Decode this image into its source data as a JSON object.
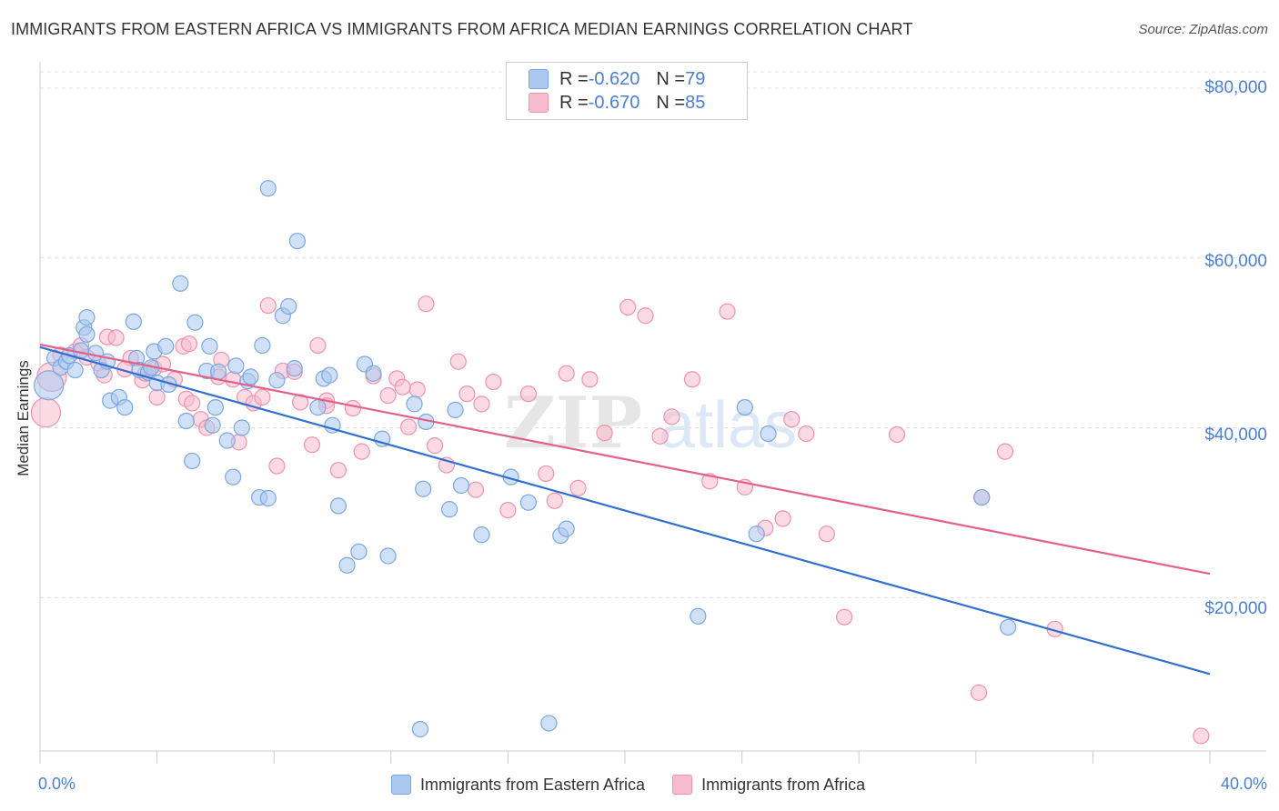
{
  "header": {
    "title": "IMMIGRANTS FROM EASTERN AFRICA VS IMMIGRANTS FROM AFRICA MEDIAN EARNINGS CORRELATION CHART",
    "source": "Source: ZipAtlas.com"
  },
  "watermark": {
    "zip": "ZIP",
    "atlas": "atlas"
  },
  "legend_top": {
    "rows": [
      {
        "r_label": "R = ",
        "r_value": "-0.620",
        "n_label": "N = ",
        "n_value": "79"
      },
      {
        "r_label": "R = ",
        "r_value": "-0.670",
        "n_label": "N = ",
        "n_value": "85"
      }
    ]
  },
  "colors": {
    "blue_fill": "#aac8f0",
    "blue_stroke": "#7ba7e0",
    "blue_line": "#2f6fd0",
    "pink_fill": "#f7bccd",
    "pink_stroke": "#ef92ad",
    "pink_line": "#e2618b",
    "tick_text": "#4a7fd4",
    "grid": "#dddddd"
  },
  "chart_data": {
    "type": "scatter",
    "xlabel": "",
    "ylabel": "Median Earnings",
    "xlim": [
      0,
      40
    ],
    "ylim": [
      0,
      82000
    ],
    "x_tick_labels": [
      "0.0%",
      "40.0%"
    ],
    "y_ticks": [
      20000,
      40000,
      60000,
      80000
    ],
    "y_tick_labels": [
      "$20,000",
      "$40,000",
      "$60,000",
      "$80,000"
    ],
    "grid": true,
    "legend_position": "top-center",
    "series": [
      {
        "name": "Immigrants from Eastern Africa",
        "color": "#aac8f0",
        "trend": {
          "x": [
            0,
            40
          ],
          "y": [
            49500,
            11000
          ]
        },
        "points": [
          [
            0.3,
            45000
          ],
          [
            0.5,
            48200
          ],
          [
            0.7,
            47100
          ],
          [
            0.9,
            47800
          ],
          [
            1.0,
            48500
          ],
          [
            1.2,
            46800
          ],
          [
            1.5,
            51800
          ],
          [
            1.6,
            51000
          ],
          [
            1.6,
            53000
          ],
          [
            1.9,
            48800
          ],
          [
            2.1,
            46800
          ],
          [
            2.3,
            47800
          ],
          [
            2.4,
            43200
          ],
          [
            2.7,
            43600
          ],
          [
            2.9,
            42400
          ],
          [
            3.2,
            52500
          ],
          [
            3.3,
            48200
          ],
          [
            3.4,
            46800
          ],
          [
            3.7,
            46500
          ],
          [
            3.9,
            49000
          ],
          [
            4.0,
            45300
          ],
          [
            4.3,
            49600
          ],
          [
            4.4,
            45100
          ],
          [
            4.8,
            57000
          ],
          [
            5.0,
            40800
          ],
          [
            5.2,
            36100
          ],
          [
            5.3,
            52400
          ],
          [
            5.7,
            46700
          ],
          [
            5.8,
            49600
          ],
          [
            5.9,
            40300
          ],
          [
            6.0,
            42400
          ],
          [
            6.4,
            38500
          ],
          [
            6.6,
            34200
          ],
          [
            6.7,
            47300
          ],
          [
            6.9,
            40000
          ],
          [
            7.1,
            45500
          ],
          [
            7.2,
            46000
          ],
          [
            7.5,
            31800
          ],
          [
            7.6,
            49700
          ],
          [
            7.8,
            31700
          ],
          [
            7.8,
            68200
          ],
          [
            8.1,
            45600
          ],
          [
            8.3,
            53200
          ],
          [
            8.5,
            54300
          ],
          [
            8.7,
            47000
          ],
          [
            8.8,
            62000
          ],
          [
            9.5,
            42400
          ],
          [
            9.7,
            45800
          ],
          [
            10.0,
            40300
          ],
          [
            10.2,
            30800
          ],
          [
            10.5,
            23800
          ],
          [
            10.9,
            25400
          ],
          [
            11.1,
            47500
          ],
          [
            11.4,
            46400
          ],
          [
            11.9,
            24900
          ],
          [
            12.8,
            42800
          ],
          [
            13.0,
            4500
          ],
          [
            13.1,
            32800
          ],
          [
            13.2,
            40700
          ],
          [
            14.0,
            30400
          ],
          [
            14.2,
            42100
          ],
          [
            14.4,
            33200
          ],
          [
            15.1,
            27400
          ],
          [
            16.1,
            34200
          ],
          [
            16.7,
            31200
          ],
          [
            17.4,
            5200
          ],
          [
            17.8,
            27300
          ],
          [
            18.0,
            28100
          ],
          [
            22.5,
            17800
          ],
          [
            24.1,
            42400
          ],
          [
            24.5,
            27500
          ],
          [
            24.9,
            39300
          ],
          [
            32.2,
            31800
          ],
          [
            33.1,
            16500
          ],
          [
            11.7,
            38700
          ],
          [
            6.1,
            46600
          ],
          [
            9.9,
            46200
          ],
          [
            3.8,
            47100
          ],
          [
            1.4,
            49100
          ]
        ]
      },
      {
        "name": "Immigrants from Africa",
        "color": "#f7bccd",
        "trend": {
          "x": [
            0,
            40
          ],
          "y": [
            49800,
            22800
          ]
        },
        "points": [
          [
            0.2,
            41800
          ],
          [
            0.4,
            46000
          ],
          [
            0.7,
            48600
          ],
          [
            1.2,
            49000
          ],
          [
            1.4,
            49700
          ],
          [
            1.6,
            48300
          ],
          [
            2.0,
            47600
          ],
          [
            2.2,
            46200
          ],
          [
            2.3,
            50700
          ],
          [
            2.6,
            50600
          ],
          [
            3.1,
            48200
          ],
          [
            3.5,
            45600
          ],
          [
            3.6,
            46400
          ],
          [
            3.9,
            47000
          ],
          [
            4.0,
            43600
          ],
          [
            4.2,
            47500
          ],
          [
            4.6,
            45700
          ],
          [
            4.9,
            49600
          ],
          [
            5.0,
            43400
          ],
          [
            5.2,
            42900
          ],
          [
            5.5,
            41000
          ],
          [
            5.7,
            40000
          ],
          [
            6.1,
            46000
          ],
          [
            6.2,
            48000
          ],
          [
            6.6,
            45700
          ],
          [
            6.8,
            38300
          ],
          [
            7.0,
            43600
          ],
          [
            7.3,
            42900
          ],
          [
            7.6,
            43600
          ],
          [
            7.8,
            54400
          ],
          [
            8.1,
            35500
          ],
          [
            8.3,
            46700
          ],
          [
            8.7,
            46600
          ],
          [
            8.9,
            43000
          ],
          [
            9.3,
            38000
          ],
          [
            9.5,
            49700
          ],
          [
            9.8,
            43200
          ],
          [
            10.2,
            35000
          ],
          [
            10.7,
            42300
          ],
          [
            11.0,
            37200
          ],
          [
            11.4,
            46100
          ],
          [
            11.9,
            43800
          ],
          [
            12.2,
            45800
          ],
          [
            12.6,
            40100
          ],
          [
            12.9,
            44500
          ],
          [
            13.2,
            54600
          ],
          [
            13.5,
            37900
          ],
          [
            13.9,
            35600
          ],
          [
            14.3,
            47800
          ],
          [
            14.6,
            44000
          ],
          [
            15.1,
            42800
          ],
          [
            15.5,
            45400
          ],
          [
            16.0,
            30300
          ],
          [
            16.7,
            44000
          ],
          [
            17.3,
            34600
          ],
          [
            17.6,
            31400
          ],
          [
            18.0,
            46400
          ],
          [
            18.4,
            32900
          ],
          [
            18.8,
            45700
          ],
          [
            19.3,
            39400
          ],
          [
            20.1,
            54200
          ],
          [
            20.7,
            53200
          ],
          [
            21.2,
            39000
          ],
          [
            21.6,
            41300
          ],
          [
            22.3,
            45700
          ],
          [
            22.9,
            33700
          ],
          [
            23.5,
            53700
          ],
          [
            24.1,
            33000
          ],
          [
            24.8,
            28200
          ],
          [
            25.4,
            29300
          ],
          [
            25.7,
            41000
          ],
          [
            26.2,
            39300
          ],
          [
            26.9,
            27500
          ],
          [
            27.5,
            17700
          ],
          [
            29.3,
            39200
          ],
          [
            32.1,
            8800
          ],
          [
            32.2,
            31800
          ],
          [
            33.0,
            37200
          ],
          [
            34.7,
            16300
          ],
          [
            39.7,
            3700
          ],
          [
            9.8,
            42600
          ],
          [
            14.9,
            32700
          ],
          [
            2.9,
            46900
          ],
          [
            5.1,
            49900
          ],
          [
            12.4,
            44800
          ]
        ]
      }
    ]
  },
  "x_axis": {
    "min_label": "0.0%",
    "max_label": "40.0%"
  },
  "legend_bottom": {
    "items": [
      "Immigrants from Eastern Africa",
      "Immigrants from Africa"
    ]
  }
}
